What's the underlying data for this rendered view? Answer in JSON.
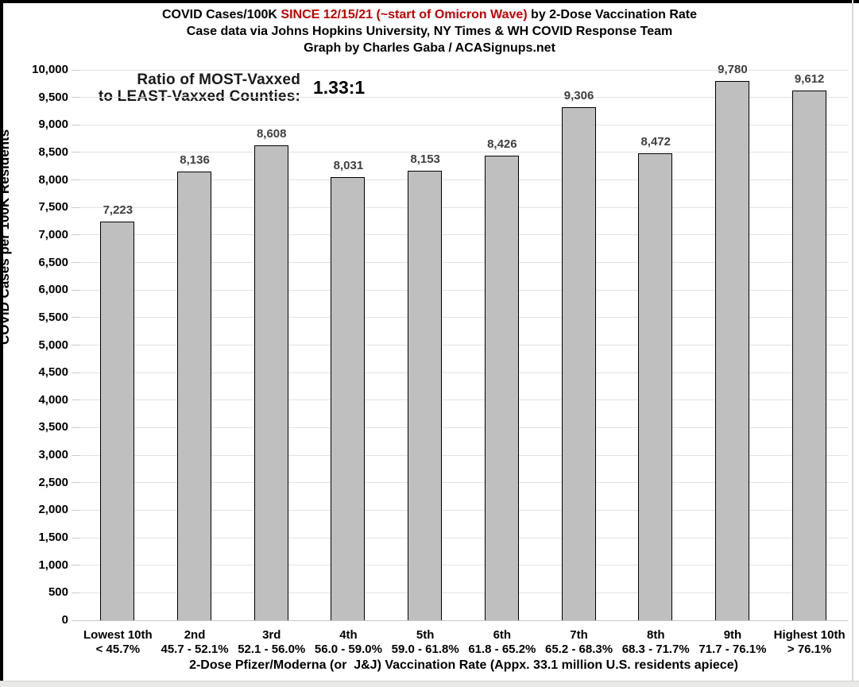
{
  "header": {
    "title_black1": "COVID Cases/100K ",
    "title_red": "SINCE 12/15/21 (~start of Omicron Wave)",
    "title_black2": " by 2-Dose Vaccination Rate",
    "subtitle": "Case data via Johns Hopkins University, NY Times & WH COVID Response Team",
    "credit": "Graph by Charles Gaba / ACASignups.net"
  },
  "annotation": {
    "label_line1": "Ratio of MOST-Vaxxed",
    "label_line2": "to LEAST-Vaxxed Counties:",
    "value": "1.33:1"
  },
  "colors": {
    "bar_fill": "#bfbfbf",
    "bar_border": "#000000",
    "value_label": "#3f3f3f",
    "title_red": "#c00000",
    "gridline": "#e2e2e2",
    "baseline": "#c6c6c6",
    "tick": "#c9c9c9"
  },
  "chart_data": {
    "type": "bar",
    "title": "COVID Cases/100K SINCE 12/15/21 (~start of Omicron Wave) by 2-Dose Vaccination Rate",
    "subtitle": "Case data via Johns Hopkins University, NY Times & WH COVID Response Team",
    "credit": "Graph by Charles Gaba / ACASignups.net",
    "xlabel": "2-Dose Pfizer/Moderna (or  J&J) Vaccination Rate (Appx. 33.1 million U.S. residents apiece)",
    "ylabel": "COVID Cases per 100K Residents",
    "ylim": [
      0,
      10000
    ],
    "ytick_step": 500,
    "grid": true,
    "legend": "none",
    "annotation": "Ratio of MOST-Vaxxed to LEAST-Vaxxed Counties: 1.33:1",
    "categories": [
      {
        "tier": "Lowest 10th",
        "range": "< 45.7%"
      },
      {
        "tier": "2nd",
        "range": "45.7 - 52.1%"
      },
      {
        "tier": "3rd",
        "range": "52.1 - 56.0%"
      },
      {
        "tier": "4th",
        "range": "56.0 - 59.0%"
      },
      {
        "tier": "5th",
        "range": "59.0 - 61.8%"
      },
      {
        "tier": "6th",
        "range": "61.8 - 65.2%"
      },
      {
        "tier": "7th",
        "range": "65.2 - 68.3%"
      },
      {
        "tier": "8th",
        "range": "68.3 - 71.7%"
      },
      {
        "tier": "9th",
        "range": "71.7 - 76.1%"
      },
      {
        "tier": "Highest 10th",
        "range": "> 76.1%"
      }
    ],
    "values": [
      7223,
      8136,
      8608,
      8031,
      8153,
      8426,
      9306,
      8472,
      9780,
      9612
    ]
  }
}
